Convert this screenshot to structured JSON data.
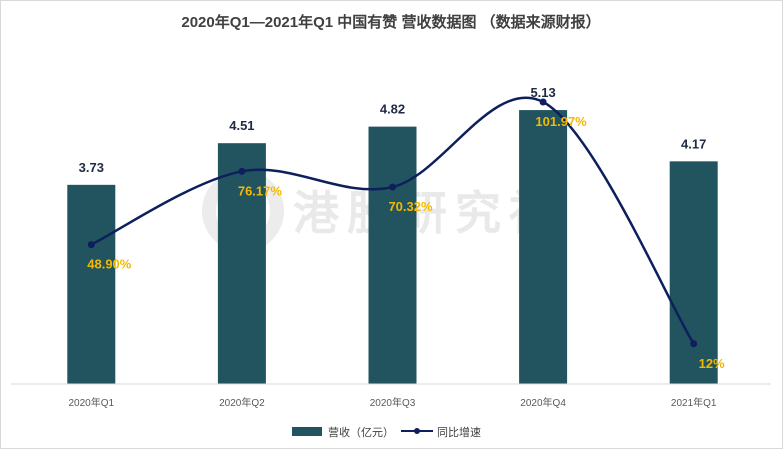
{
  "chart_data": {
    "type": "bar",
    "title": "2020年Q1—2021年Q1 中国有赞 营收数据图 （数据来源财报）",
    "categories": [
      "2020年Q1",
      "2020年Q2",
      "2020年Q3",
      "2020年Q4",
      "2021年Q1"
    ],
    "series": [
      {
        "name": "营收（亿元）",
        "kind": "bar",
        "color": "#22545f",
        "values": [
          3.73,
          4.51,
          4.82,
          5.13,
          4.17
        ],
        "labels": [
          "3.73",
          "4.51",
          "4.82",
          "5.13",
          "4.17"
        ]
      },
      {
        "name": "同比增速",
        "kind": "line",
        "color": "#0d1f5c",
        "values": [
          48.9,
          76.17,
          70.32,
          101.97,
          12
        ],
        "labels": [
          "48.90%",
          "76.17%",
          "70.32%",
          "101.97%",
          "12%"
        ]
      }
    ],
    "label_colors": {
      "bar_value": "#1f2a44",
      "line_value": "#f5b800"
    },
    "ylim_bar": [
      0,
      5.3
    ],
    "ylim_line": [
      0,
      105
    ],
    "legend_position": "bottom-center",
    "grid": false
  },
  "watermark": "港股研究社"
}
